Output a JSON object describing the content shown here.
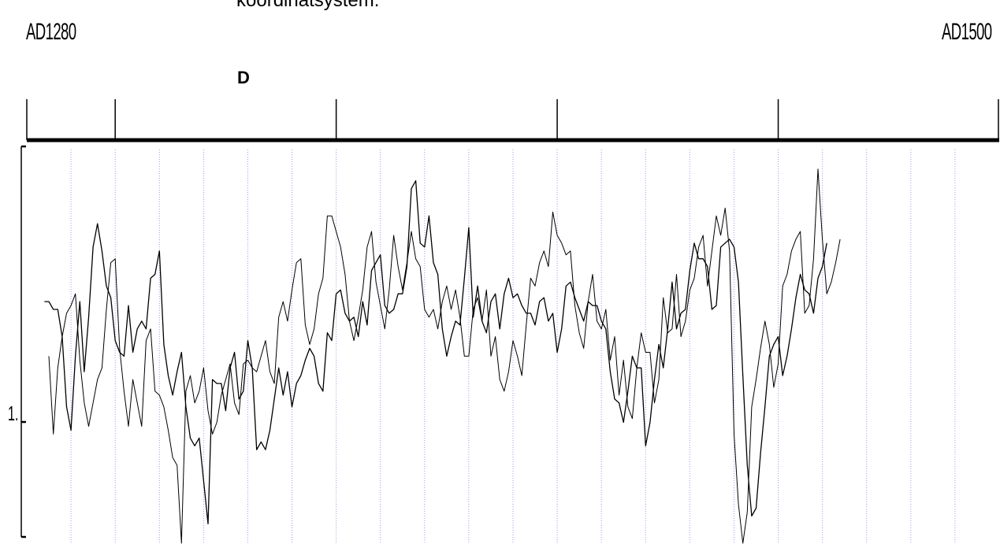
{
  "header": {
    "text_line1": "koordinatsystem.",
    "panel_letter": "D"
  },
  "chart_data": {
    "type": "line",
    "title": "",
    "start_label": "AD1280",
    "end_label": "AD1500",
    "x_range": [
      1280,
      1500
    ],
    "y_tick_label": "1.",
    "grid": "vertical dotted",
    "colors": {
      "series": "#000000",
      "grid": "#9a9ae6",
      "axis": "#000000"
    },
    "series": [
      {
        "start": 1284,
        "values": [
          0.62,
          0.62,
          0.6,
          0.6,
          0.53,
          0.35,
          0.29,
          0.48,
          0.62,
          0.44,
          0.58,
          0.76,
          0.82,
          0.75,
          0.66,
          0.63,
          0.52,
          0.49,
          0.48,
          0.61,
          0.49,
          0.55,
          0.57,
          0.55,
          0.68,
          0.69,
          0.75,
          0.51,
          0.43,
          0.38,
          0.44,
          0.49,
          0.35,
          0.27,
          0.25,
          0.27,
          0.16,
          0.05,
          0.42,
          0.41,
          0.41,
          0.34,
          0.45,
          0.49,
          0.37,
          0.39,
          0.52,
          0.45,
          0.24,
          0.26,
          0.24,
          0.29,
          0.37,
          0.45,
          0.38,
          0.44,
          0.35,
          0.41,
          0.43,
          0.47,
          0.5,
          0.48,
          0.41,
          0.39,
          0.54,
          0.52,
          0.64,
          0.65,
          0.59,
          0.57,
          0.58,
          0.53,
          0.62,
          0.56,
          0.7,
          0.72,
          0.74,
          0.61,
          0.59,
          0.6,
          0.64,
          0.64,
          0.71,
          0.91,
          0.93,
          0.77,
          0.76,
          0.84,
          0.72,
          0.69,
          0.55,
          0.48,
          0.53,
          0.57,
          0.56,
          0.68,
          0.81,
          0.58,
          0.66,
          0.57,
          0.54,
          0.62,
          0.64,
          0.55,
          0.64,
          0.68,
          0.63,
          0.64,
          0.61,
          0.59,
          0.59,
          0.56,
          0.62,
          0.63,
          0.57,
          0.59,
          0.49,
          0.55,
          0.66,
          0.67,
          0.63,
          0.6,
          0.57,
          0.62,
          0.61,
          0.61,
          0.57,
          0.55,
          0.44,
          0.37,
          0.36,
          0.31,
          0.39,
          0.48,
          0.45,
          0.45,
          0.25,
          0.31,
          0.42,
          0.51,
          0.45,
          0.55,
          0.67,
          0.55,
          0.59,
          0.6,
          0.7,
          0.77,
          0.73,
          0.73,
          0.71,
          0.6,
          0.61,
          0.76,
          0.77,
          0.78,
          0.76,
          0.67,
          0.43,
          0.2,
          0.07,
          0.09,
          0.23,
          0.35,
          0.48,
          0.51,
          0.53,
          0.43,
          0.48,
          0.55,
          0.63,
          0.69,
          0.65,
          0.64,
          0.59,
          0.68,
          0.71,
          0.77
        ],
        "stroke_width": 1.3
      },
      {
        "start": 1285,
        "values": [
          0.48,
          0.28,
          0.45,
          0.53,
          0.59,
          0.61,
          0.64,
          0.47,
          0.36,
          0.3,
          0.36,
          0.42,
          0.45,
          0.6,
          0.72,
          0.73,
          0.5,
          0.39,
          0.3,
          0.42,
          0.36,
          0.3,
          0.52,
          0.55,
          0.39,
          0.38,
          0.35,
          0.29,
          0.22,
          0.2,
          0.0,
          0.39,
          0.43,
          0.36,
          0.39,
          0.45,
          0.34,
          0.28,
          0.31,
          0.38,
          0.42,
          0.46,
          0.36,
          0.33,
          0.46,
          0.47,
          0.45,
          0.44,
          0.48,
          0.52,
          0.44,
          0.41,
          0.58,
          0.62,
          0.57,
          0.65,
          0.72,
          0.73,
          0.56,
          0.51,
          0.55,
          0.64,
          0.68,
          0.84,
          0.84,
          0.8,
          0.76,
          0.69,
          0.57,
          0.52,
          0.58,
          0.65,
          0.76,
          0.8,
          0.67,
          0.61,
          0.55,
          0.65,
          0.79,
          0.71,
          0.65,
          0.72,
          0.8,
          0.73,
          0.71,
          0.6,
          0.58,
          0.6,
          0.55,
          0.62,
          0.66,
          0.6,
          0.65,
          0.58,
          0.48,
          0.48,
          0.6,
          0.63,
          0.57,
          0.65,
          0.48,
          0.53,
          0.42,
          0.39,
          0.44,
          0.52,
          0.48,
          0.43,
          0.56,
          0.68,
          0.66,
          0.72,
          0.75,
          0.71,
          0.85,
          0.79,
          0.77,
          0.74,
          0.75,
          0.61,
          0.54,
          0.5,
          0.62,
          0.69,
          0.57,
          0.55,
          0.6,
          0.47,
          0.53,
          0.38,
          0.47,
          0.35,
          0.32,
          0.45,
          0.54,
          0.49,
          0.49,
          0.36,
          0.42,
          0.63,
          0.54,
          0.55,
          0.69,
          0.53,
          0.57,
          0.65,
          0.68,
          0.76,
          0.79,
          0.66,
          0.75,
          0.84,
          0.79,
          0.86,
          0.75,
          0.28,
          0.1,
          0.0,
          0.08,
          0.35,
          0.42,
          0.5,
          0.57,
          0.51,
          0.4,
          0.46,
          0.66,
          0.69,
          0.75,
          0.78,
          0.8,
          0.59,
          0.61,
          0.73,
          0.96,
          0.78,
          0.64,
          0.67,
          0.72,
          0.78
        ],
        "stroke_width": 1.0
      }
    ]
  }
}
